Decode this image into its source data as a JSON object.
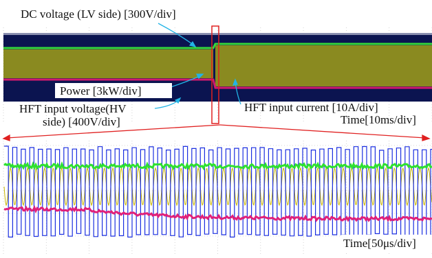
{
  "labels": {
    "dc_voltage": "DC voltage (LV side) [300V/div]",
    "power": "Power [3kW/div]",
    "hft_voltage": [
      "HFT input voltage(HV",
      "side) [400V/div]"
    ],
    "hft_current": "HFT input current [10A/div]",
    "time_top": "Time[10ms/div]",
    "time_bottom": "Time[50μs/div]"
  }
}
